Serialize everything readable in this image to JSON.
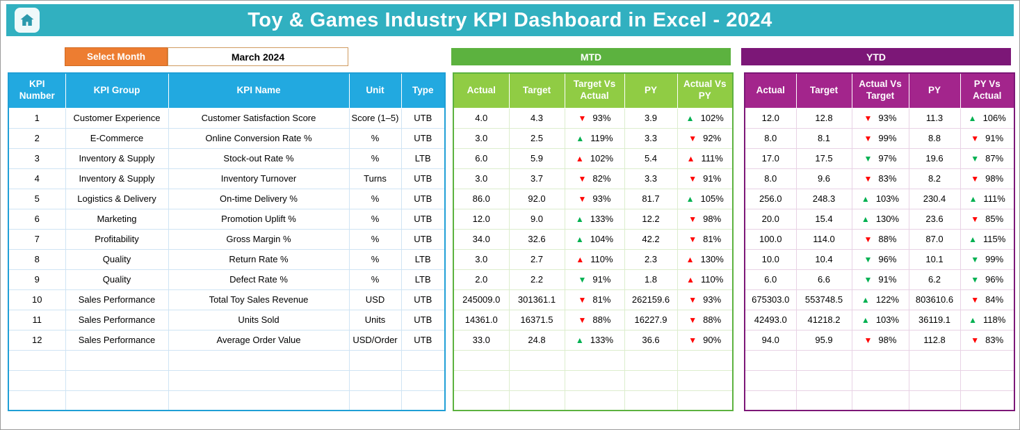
{
  "header": {
    "title": "Toy & Games Industry KPI Dashboard in Excel - 2024"
  },
  "controls": {
    "select_month_label": "Select Month",
    "selected_month": "March 2024"
  },
  "sections": {
    "mtd_label": "MTD",
    "ytd_label": "YTD"
  },
  "colors": {
    "header_teal": "#31B0C0",
    "accent_orange": "#ED7D31",
    "info_header_blue": "#22A9E0",
    "mtd_green_dark": "#5CB23F",
    "mtd_green_light": "#90CC44",
    "ytd_purple_dark": "#7C1777",
    "ytd_purple_light": "#A3258C",
    "good_arrow": "#00B050",
    "bad_arrow": "#FF0000"
  },
  "table": {
    "info_headers": [
      "KPI Number",
      "KPI Group",
      "KPI Name",
      "Unit",
      "Type"
    ],
    "mtd_headers": [
      "Actual",
      "Target",
      "Target Vs Actual",
      "PY",
      "Actual Vs PY"
    ],
    "ytd_headers": [
      "Actual",
      "Target",
      "Actual Vs Target",
      "PY",
      "PY Vs Actual"
    ],
    "blank_row_count": 3,
    "rows": [
      {
        "kpi_number": "1",
        "kpi_group": "Customer Experience",
        "kpi_name": "Customer Satisfaction Score",
        "unit": "Score (1–5)",
        "type": "UTB",
        "mtd": {
          "actual": "4.0",
          "target": "4.3",
          "target_vs_actual": {
            "arrow": "down",
            "state": "bad",
            "value": "93%"
          },
          "py": "3.9",
          "actual_vs_py": {
            "arrow": "up",
            "state": "good",
            "value": "102%"
          }
        },
        "ytd": {
          "actual": "12.0",
          "target": "12.8",
          "actual_vs_target": {
            "arrow": "down",
            "state": "bad",
            "value": "93%"
          },
          "py": "11.3",
          "py_vs_actual": {
            "arrow": "up",
            "state": "good",
            "value": "106%"
          }
        }
      },
      {
        "kpi_number": "2",
        "kpi_group": "E-Commerce",
        "kpi_name": "Online Conversion Rate %",
        "unit": "%",
        "type": "UTB",
        "mtd": {
          "actual": "3.0",
          "target": "2.5",
          "target_vs_actual": {
            "arrow": "up",
            "state": "good",
            "value": "119%"
          },
          "py": "3.3",
          "actual_vs_py": {
            "arrow": "down",
            "state": "bad",
            "value": "92%"
          }
        },
        "ytd": {
          "actual": "8.0",
          "target": "8.1",
          "actual_vs_target": {
            "arrow": "down",
            "state": "bad",
            "value": "99%"
          },
          "py": "8.8",
          "py_vs_actual": {
            "arrow": "down",
            "state": "bad",
            "value": "91%"
          }
        }
      },
      {
        "kpi_number": "3",
        "kpi_group": "Inventory & Supply",
        "kpi_name": "Stock-out Rate %",
        "unit": "%",
        "type": "LTB",
        "mtd": {
          "actual": "6.0",
          "target": "5.9",
          "target_vs_actual": {
            "arrow": "up",
            "state": "bad",
            "value": "102%"
          },
          "py": "5.4",
          "actual_vs_py": {
            "arrow": "up",
            "state": "bad",
            "value": "111%"
          }
        },
        "ytd": {
          "actual": "17.0",
          "target": "17.5",
          "actual_vs_target": {
            "arrow": "down",
            "state": "good",
            "value": "97%"
          },
          "py": "19.6",
          "py_vs_actual": {
            "arrow": "down",
            "state": "good",
            "value": "87%"
          }
        }
      },
      {
        "kpi_number": "4",
        "kpi_group": "Inventory & Supply",
        "kpi_name": "Inventory Turnover",
        "unit": "Turns",
        "type": "UTB",
        "mtd": {
          "actual": "3.0",
          "target": "3.7",
          "target_vs_actual": {
            "arrow": "down",
            "state": "bad",
            "value": "82%"
          },
          "py": "3.3",
          "actual_vs_py": {
            "arrow": "down",
            "state": "bad",
            "value": "91%"
          }
        },
        "ytd": {
          "actual": "8.0",
          "target": "9.6",
          "actual_vs_target": {
            "arrow": "down",
            "state": "bad",
            "value": "83%"
          },
          "py": "8.2",
          "py_vs_actual": {
            "arrow": "down",
            "state": "bad",
            "value": "98%"
          }
        }
      },
      {
        "kpi_number": "5",
        "kpi_group": "Logistics & Delivery",
        "kpi_name": "On-time Delivery %",
        "unit": "%",
        "type": "UTB",
        "mtd": {
          "actual": "86.0",
          "target": "92.0",
          "target_vs_actual": {
            "arrow": "down",
            "state": "bad",
            "value": "93%"
          },
          "py": "81.7",
          "actual_vs_py": {
            "arrow": "up",
            "state": "good",
            "value": "105%"
          }
        },
        "ytd": {
          "actual": "256.0",
          "target": "248.3",
          "actual_vs_target": {
            "arrow": "up",
            "state": "good",
            "value": "103%"
          },
          "py": "230.4",
          "py_vs_actual": {
            "arrow": "up",
            "state": "good",
            "value": "111%"
          }
        }
      },
      {
        "kpi_number": "6",
        "kpi_group": "Marketing",
        "kpi_name": "Promotion Uplift %",
        "unit": "%",
        "type": "UTB",
        "mtd": {
          "actual": "12.0",
          "target": "9.0",
          "target_vs_actual": {
            "arrow": "up",
            "state": "good",
            "value": "133%"
          },
          "py": "12.2",
          "actual_vs_py": {
            "arrow": "down",
            "state": "bad",
            "value": "98%"
          }
        },
        "ytd": {
          "actual": "20.0",
          "target": "15.4",
          "actual_vs_target": {
            "arrow": "up",
            "state": "good",
            "value": "130%"
          },
          "py": "23.6",
          "py_vs_actual": {
            "arrow": "down",
            "state": "bad",
            "value": "85%"
          }
        }
      },
      {
        "kpi_number": "7",
        "kpi_group": "Profitability",
        "kpi_name": "Gross Margin %",
        "unit": "%",
        "type": "UTB",
        "mtd": {
          "actual": "34.0",
          "target": "32.6",
          "target_vs_actual": {
            "arrow": "up",
            "state": "good",
            "value": "104%"
          },
          "py": "42.2",
          "actual_vs_py": {
            "arrow": "down",
            "state": "bad",
            "value": "81%"
          }
        },
        "ytd": {
          "actual": "100.0",
          "target": "114.0",
          "actual_vs_target": {
            "arrow": "down",
            "state": "bad",
            "value": "88%"
          },
          "py": "87.0",
          "py_vs_actual": {
            "arrow": "up",
            "state": "good",
            "value": "115%"
          }
        }
      },
      {
        "kpi_number": "8",
        "kpi_group": "Quality",
        "kpi_name": "Return Rate %",
        "unit": "%",
        "type": "LTB",
        "mtd": {
          "actual": "3.0",
          "target": "2.7",
          "target_vs_actual": {
            "arrow": "up",
            "state": "bad",
            "value": "110%"
          },
          "py": "2.3",
          "actual_vs_py": {
            "arrow": "up",
            "state": "bad",
            "value": "130%"
          }
        },
        "ytd": {
          "actual": "10.0",
          "target": "10.4",
          "actual_vs_target": {
            "arrow": "down",
            "state": "good",
            "value": "96%"
          },
          "py": "10.1",
          "py_vs_actual": {
            "arrow": "down",
            "state": "good",
            "value": "99%"
          }
        }
      },
      {
        "kpi_number": "9",
        "kpi_group": "Quality",
        "kpi_name": "Defect Rate %",
        "unit": "%",
        "type": "LTB",
        "mtd": {
          "actual": "2.0",
          "target": "2.2",
          "target_vs_actual": {
            "arrow": "down",
            "state": "good",
            "value": "91%"
          },
          "py": "1.8",
          "actual_vs_py": {
            "arrow": "up",
            "state": "bad",
            "value": "110%"
          }
        },
        "ytd": {
          "actual": "6.0",
          "target": "6.6",
          "actual_vs_target": {
            "arrow": "down",
            "state": "good",
            "value": "91%"
          },
          "py": "6.2",
          "py_vs_actual": {
            "arrow": "down",
            "state": "good",
            "value": "96%"
          }
        }
      },
      {
        "kpi_number": "10",
        "kpi_group": "Sales Performance",
        "kpi_name": "Total Toy Sales Revenue",
        "unit": "USD",
        "type": "UTB",
        "mtd": {
          "actual": "245009.0",
          "target": "301361.1",
          "target_vs_actual": {
            "arrow": "down",
            "state": "bad",
            "value": "81%"
          },
          "py": "262159.6",
          "actual_vs_py": {
            "arrow": "down",
            "state": "bad",
            "value": "93%"
          }
        },
        "ytd": {
          "actual": "675303.0",
          "target": "553748.5",
          "actual_vs_target": {
            "arrow": "up",
            "state": "good",
            "value": "122%"
          },
          "py": "803610.6",
          "py_vs_actual": {
            "arrow": "down",
            "state": "bad",
            "value": "84%"
          }
        }
      },
      {
        "kpi_number": "11",
        "kpi_group": "Sales Performance",
        "kpi_name": "Units Sold",
        "unit": "Units",
        "type": "UTB",
        "mtd": {
          "actual": "14361.0",
          "target": "16371.5",
          "target_vs_actual": {
            "arrow": "down",
            "state": "bad",
            "value": "88%"
          },
          "py": "16227.9",
          "actual_vs_py": {
            "arrow": "down",
            "state": "bad",
            "value": "88%"
          }
        },
        "ytd": {
          "actual": "42493.0",
          "target": "41218.2",
          "actual_vs_target": {
            "arrow": "up",
            "state": "good",
            "value": "103%"
          },
          "py": "36119.1",
          "py_vs_actual": {
            "arrow": "up",
            "state": "good",
            "value": "118%"
          }
        }
      },
      {
        "kpi_number": "12",
        "kpi_group": "Sales Performance",
        "kpi_name": "Average Order Value",
        "unit": "USD/Order",
        "type": "UTB",
        "mtd": {
          "actual": "33.0",
          "target": "24.8",
          "target_vs_actual": {
            "arrow": "up",
            "state": "good",
            "value": "133%"
          },
          "py": "36.6",
          "actual_vs_py": {
            "arrow": "down",
            "state": "bad",
            "value": "90%"
          }
        },
        "ytd": {
          "actual": "94.0",
          "target": "95.9",
          "actual_vs_target": {
            "arrow": "down",
            "state": "bad",
            "value": "98%"
          },
          "py": "112.8",
          "py_vs_actual": {
            "arrow": "down",
            "state": "bad",
            "value": "83%"
          }
        }
      }
    ]
  }
}
